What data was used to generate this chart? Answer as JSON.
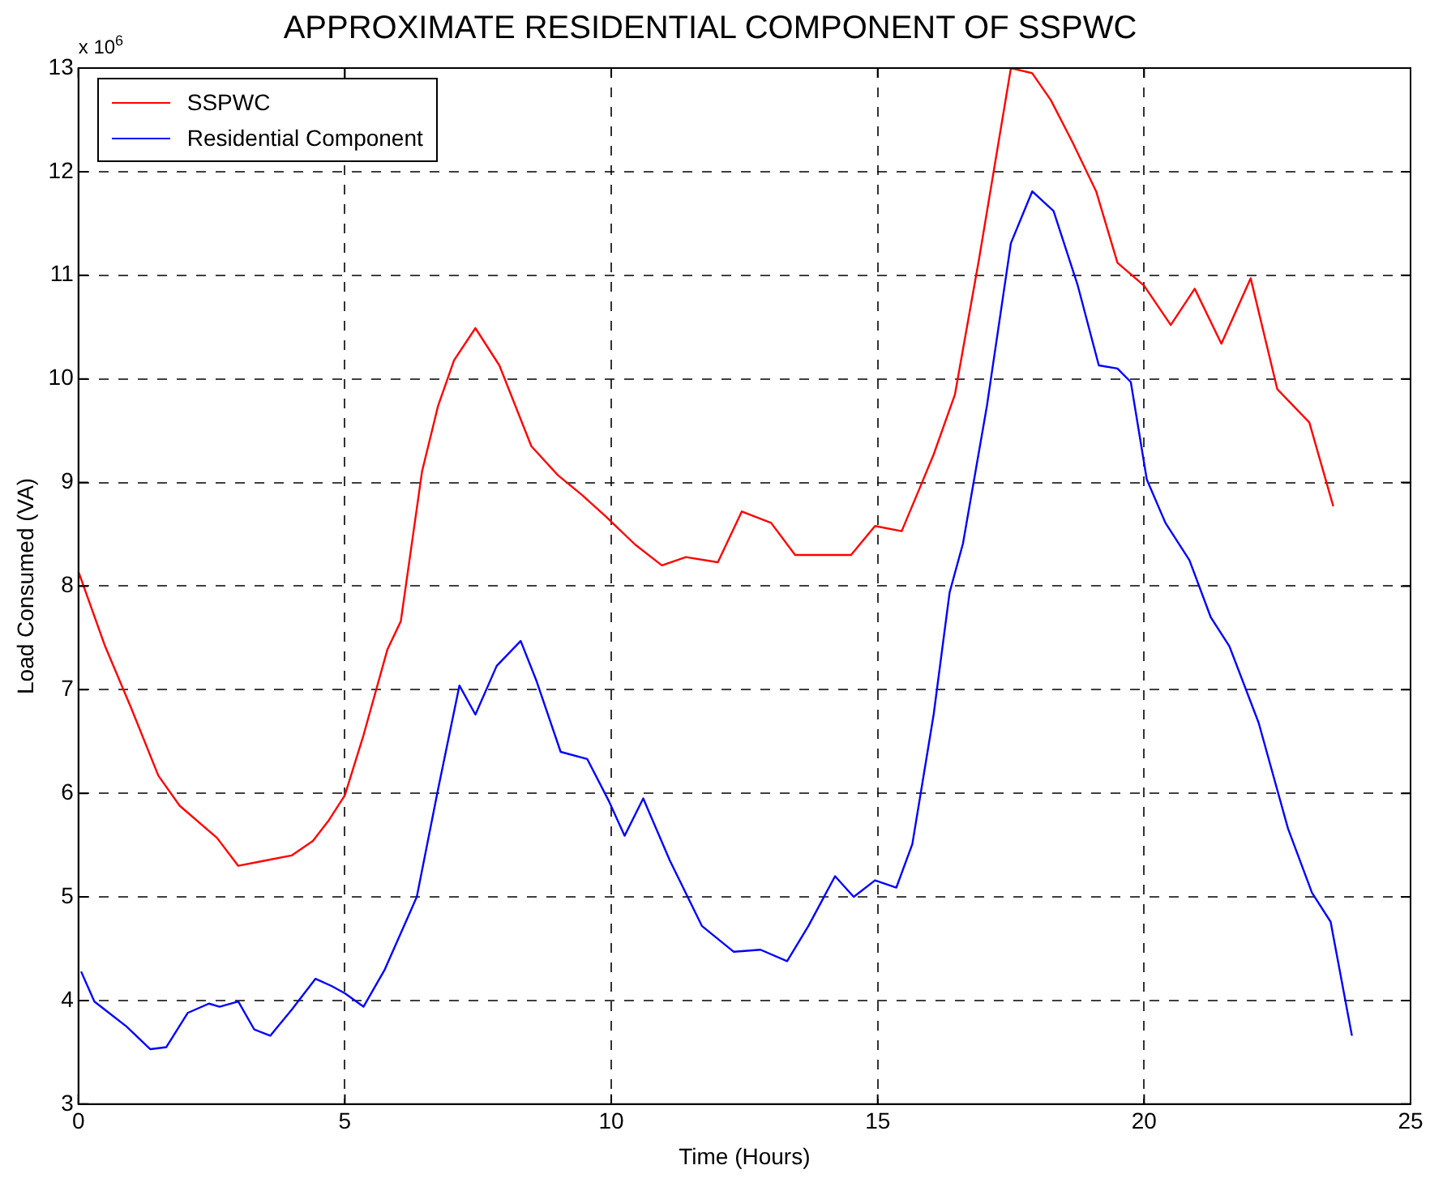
{
  "chart_data": {
    "type": "line",
    "title": "APPROXIMATE RESIDENTIAL COMPONENT OF SSPWC",
    "xlabel": "Time (Hours)",
    "ylabel": "Load Consumed (VA)",
    "annotations": [
      "x 10$^{6}$"
    ],
    "xlim": [
      0,
      25
    ],
    "xticks": [
      0,
      5,
      10,
      15,
      20,
      25
    ],
    "ylim": [
      3,
      13
    ],
    "yticks": [
      3,
      4,
      5,
      6,
      7,
      8,
      9,
      10,
      11,
      12,
      13
    ],
    "grid": true,
    "legend": "top left",
    "marker": "none",
    "line_style": "solid",
    "series": [
      {
        "name": "SSPWC",
        "color": "#ff0000",
        "x": [
          0,
          0.5,
          1.0,
          1.5,
          1.9,
          2.6,
          3.0,
          3.5,
          4.0,
          4.4,
          4.7,
          5.0,
          5.35,
          5.8,
          6.05,
          6.45,
          6.75,
          7.05,
          7.45,
          7.9,
          8.5,
          9.0,
          9.45,
          9.9,
          10.45,
          10.95,
          11.4,
          12.0,
          12.45,
          13.0,
          13.45,
          14.5,
          14.95,
          15.45,
          15.8,
          16.05,
          16.45,
          16.9,
          17.5,
          17.9,
          18.25,
          18.65,
          19.1,
          19.5,
          20.0,
          20.5,
          20.95,
          21.45,
          22.0,
          22.5,
          23.1,
          23.55
        ],
        "values": [
          8.14,
          7.42,
          6.81,
          6.17,
          5.88,
          5.57,
          5.3,
          5.35,
          5.4,
          5.54,
          5.74,
          5.98,
          6.56,
          7.39,
          7.66,
          9.11,
          9.74,
          10.18,
          10.49,
          10.13,
          9.35,
          9.07,
          8.88,
          8.67,
          8.4,
          8.2,
          8.28,
          8.23,
          8.72,
          8.61,
          8.3,
          8.3,
          8.58,
          8.53,
          8.96,
          9.27,
          9.85,
          11.15,
          13.0,
          12.95,
          12.69,
          12.29,
          11.81,
          11.12,
          10.9,
          10.52,
          10.87,
          10.34,
          10.97,
          9.9,
          9.58,
          8.77
        ]
      },
      {
        "name": "Residential Component",
        "color": "#0000ff",
        "x": [
          0.05,
          0.3,
          0.55,
          0.9,
          1.35,
          1.65,
          2.05,
          2.45,
          2.65,
          3.0,
          3.3,
          3.6,
          4.0,
          4.45,
          4.75,
          5.0,
          5.35,
          5.75,
          6.35,
          6.75,
          7.15,
          7.45,
          7.85,
          8.3,
          8.6,
          9.05,
          9.55,
          9.95,
          10.25,
          10.6,
          11.1,
          11.7,
          12.3,
          12.8,
          13.3,
          13.7,
          14.2,
          14.55,
          14.95,
          15.35,
          15.65,
          16.05,
          16.35,
          16.6,
          17.05,
          17.5,
          17.9,
          18.3,
          18.75,
          19.15,
          19.5,
          19.75,
          20.05,
          20.4,
          20.85,
          21.25,
          21.6,
          22.15,
          22.7,
          23.15,
          23.5,
          23.9
        ],
        "values": [
          4.28,
          3.99,
          3.89,
          3.75,
          3.53,
          3.55,
          3.88,
          3.97,
          3.94,
          3.99,
          3.72,
          3.66,
          3.91,
          4.21,
          4.14,
          4.07,
          3.94,
          4.3,
          5.0,
          6.04,
          7.04,
          6.76,
          7.23,
          7.47,
          7.08,
          6.4,
          6.33,
          5.93,
          5.59,
          5.95,
          5.35,
          4.72,
          4.47,
          4.49,
          4.38,
          4.72,
          5.2,
          5.0,
          5.16,
          5.09,
          5.51,
          6.76,
          7.94,
          8.41,
          9.74,
          11.31,
          11.81,
          11.62,
          10.91,
          10.13,
          10.1,
          9.97,
          9.03,
          8.61,
          8.25,
          7.7,
          7.42,
          6.68,
          5.66,
          5.04,
          4.76,
          3.66
        ]
      }
    ]
  }
}
